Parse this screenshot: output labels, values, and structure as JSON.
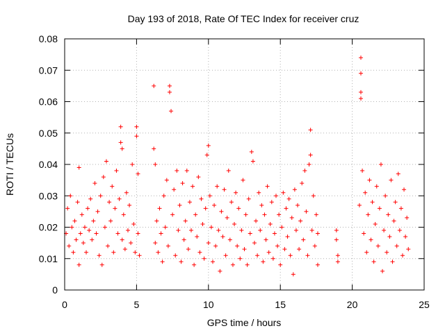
{
  "chart_data": {
    "type": "scatter",
    "title": "Day 193 of 2018, Rate Of TEC Index for receiver cruz",
    "xlabel": "GPS time / hours",
    "ylabel": "ROTI / TECUs",
    "xlim": [
      0,
      25
    ],
    "ylim": [
      0,
      0.08
    ],
    "x_ticks": [
      0,
      5,
      10,
      15,
      20,
      25
    ],
    "x_tick_labels": [
      "0",
      "5",
      "10",
      "15",
      "20",
      "25"
    ],
    "y_ticks": [
      0,
      0.01,
      0.02,
      0.03,
      0.04,
      0.05,
      0.06,
      0.07,
      0.08
    ],
    "y_tick_labels": [
      "0",
      "0.01",
      "0.02",
      "0.03",
      "0.04",
      "0.05",
      "0.06",
      "0.07",
      "0.08"
    ],
    "grid": true,
    "marker": "+",
    "color": "#ff0000",
    "series": [
      {
        "name": "ROTI",
        "points": [
          [
            0.1,
            0.018
          ],
          [
            0.2,
            0.026
          ],
          [
            0.3,
            0.014
          ],
          [
            0.4,
            0.03
          ],
          [
            0.5,
            0.02
          ],
          [
            0.6,
            0.012
          ],
          [
            0.7,
            0.022
          ],
          [
            0.8,
            0.016
          ],
          [
            0.9,
            0.028
          ],
          [
            1.0,
            0.039
          ],
          [
            1.0,
            0.008
          ],
          [
            1.1,
            0.018
          ],
          [
            1.2,
            0.024
          ],
          [
            1.3,
            0.015
          ],
          [
            1.4,
            0.02
          ],
          [
            1.5,
            0.012
          ],
          [
            1.6,
            0.026
          ],
          [
            1.7,
            0.019
          ],
          [
            1.8,
            0.029
          ],
          [
            1.9,
            0.016
          ],
          [
            2.0,
            0.022
          ],
          [
            2.1,
            0.034
          ],
          [
            2.2,
            0.018
          ],
          [
            2.3,
            0.025
          ],
          [
            2.4,
            0.011
          ],
          [
            2.5,
            0.03
          ],
          [
            2.6,
            0.008
          ],
          [
            2.7,
            0.036
          ],
          [
            2.8,
            0.02
          ],
          [
            2.9,
            0.041
          ],
          [
            3.0,
            0.014
          ],
          [
            3.1,
            0.028
          ],
          [
            3.2,
            0.022
          ],
          [
            3.3,
            0.033
          ],
          [
            3.4,
            0.012
          ],
          [
            3.5,
            0.026
          ],
          [
            3.6,
            0.038
          ],
          [
            3.7,
            0.018
          ],
          [
            3.8,
            0.029
          ],
          [
            3.9,
            0.052
          ],
          [
            3.9,
            0.047
          ],
          [
            4.0,
            0.045
          ],
          [
            4.0,
            0.016
          ],
          [
            4.1,
            0.024
          ],
          [
            4.2,
            0.013
          ],
          [
            4.3,
            0.031
          ],
          [
            4.4,
            0.019
          ],
          [
            4.5,
            0.027
          ],
          [
            4.6,
            0.015
          ],
          [
            4.7,
            0.04
          ],
          [
            4.8,
            0.021
          ],
          [
            4.9,
            0.012
          ],
          [
            5.0,
            0.052
          ],
          [
            5.0,
            0.049
          ],
          [
            5.1,
            0.037
          ],
          [
            5.1,
            0.018
          ],
          [
            5.2,
            0.011
          ],
          [
            6.2,
            0.065
          ],
          [
            6.2,
            0.045
          ],
          [
            6.3,
            0.04
          ],
          [
            6.3,
            0.015
          ],
          [
            6.4,
            0.022
          ],
          [
            6.5,
            0.012
          ],
          [
            6.6,
            0.026
          ],
          [
            6.7,
            0.018
          ],
          [
            6.8,
            0.009
          ],
          [
            6.9,
            0.03
          ],
          [
            7.0,
            0.02
          ],
          [
            7.1,
            0.035
          ],
          [
            7.2,
            0.014
          ],
          [
            7.3,
            0.065
          ],
          [
            7.3,
            0.063
          ],
          [
            7.4,
            0.057
          ],
          [
            7.5,
            0.024
          ],
          [
            7.6,
            0.032
          ],
          [
            7.7,
            0.011
          ],
          [
            7.8,
            0.038
          ],
          [
            7.9,
            0.019
          ],
          [
            8.0,
            0.027
          ],
          [
            8.1,
            0.009
          ],
          [
            8.2,
            0.034
          ],
          [
            8.3,
            0.016
          ],
          [
            8.4,
            0.022
          ],
          [
            8.5,
            0.038
          ],
          [
            8.6,
            0.013
          ],
          [
            8.7,
            0.028
          ],
          [
            8.8,
            0.019
          ],
          [
            8.9,
            0.033
          ],
          [
            9.0,
            0.008
          ],
          [
            9.1,
            0.024
          ],
          [
            9.2,
            0.017
          ],
          [
            9.3,
            0.036
          ],
          [
            9.4,
            0.012
          ],
          [
            9.5,
            0.029
          ],
          [
            9.6,
            0.021
          ],
          [
            9.7,
            0.01
          ],
          [
            9.8,
            0.026
          ],
          [
            9.9,
            0.043
          ],
          [
            10.0,
            0.046
          ],
          [
            10.0,
            0.015
          ],
          [
            10.1,
            0.03
          ],
          [
            10.2,
            0.02
          ],
          [
            10.3,
            0.009
          ],
          [
            10.4,
            0.027
          ],
          [
            10.5,
            0.014
          ],
          [
            10.6,
            0.033
          ],
          [
            10.7,
            0.019
          ],
          [
            10.8,
            0.006
          ],
          [
            10.9,
            0.025
          ],
          [
            11.0,
            0.017
          ],
          [
            11.1,
            0.032
          ],
          [
            11.2,
            0.011
          ],
          [
            11.3,
            0.023
          ],
          [
            11.4,
            0.038
          ],
          [
            11.5,
            0.016
          ],
          [
            11.6,
            0.028
          ],
          [
            11.7,
            0.008
          ],
          [
            11.8,
            0.021
          ],
          [
            11.9,
            0.031
          ],
          [
            12.0,
            0.014
          ],
          [
            12.1,
            0.026
          ],
          [
            12.2,
            0.01
          ],
          [
            12.3,
            0.019
          ],
          [
            12.4,
            0.035
          ],
          [
            12.5,
            0.013
          ],
          [
            12.6,
            0.024
          ],
          [
            12.7,
            0.008
          ],
          [
            12.8,
            0.029
          ],
          [
            12.9,
            0.018
          ],
          [
            13.0,
            0.044
          ],
          [
            13.1,
            0.041
          ],
          [
            13.2,
            0.015
          ],
          [
            13.3,
            0.022
          ],
          [
            13.4,
            0.011
          ],
          [
            13.5,
            0.031
          ],
          [
            13.6,
            0.019
          ],
          [
            13.7,
            0.027
          ],
          [
            13.8,
            0.009
          ],
          [
            13.9,
            0.024
          ],
          [
            14.0,
            0.016
          ],
          [
            14.1,
            0.033
          ],
          [
            14.2,
            0.012
          ],
          [
            14.3,
            0.021
          ],
          [
            14.4,
            0.028
          ],
          [
            14.5,
            0.01
          ],
          [
            14.6,
            0.018
          ],
          [
            14.7,
            0.03
          ],
          [
            14.8,
            0.014
          ],
          [
            14.9,
            0.024
          ],
          [
            15.0,
            0.008
          ],
          [
            15.1,
            0.02
          ],
          [
            15.2,
            0.031
          ],
          [
            15.3,
            0.013
          ],
          [
            15.4,
            0.026
          ],
          [
            15.5,
            0.017
          ],
          [
            15.6,
            0.029
          ],
          [
            15.7,
            0.011
          ],
          [
            15.8,
            0.023
          ],
          [
            15.9,
            0.005
          ],
          [
            16.0,
            0.032
          ],
          [
            16.1,
            0.019
          ],
          [
            16.2,
            0.027
          ],
          [
            16.3,
            0.013
          ],
          [
            16.4,
            0.022
          ],
          [
            16.5,
            0.034
          ],
          [
            16.6,
            0.016
          ],
          [
            16.7,
            0.038
          ],
          [
            16.8,
            0.025
          ],
          [
            16.9,
            0.011
          ],
          [
            17.0,
            0.04
          ],
          [
            17.1,
            0.043
          ],
          [
            17.1,
            0.051
          ],
          [
            17.2,
            0.019
          ],
          [
            17.3,
            0.03
          ],
          [
            17.4,
            0.014
          ],
          [
            17.5,
            0.024
          ],
          [
            17.6,
            0.008
          ],
          [
            17.6,
            0.018
          ],
          [
            18.9,
            0.019
          ],
          [
            18.9,
            0.016
          ],
          [
            19.0,
            0.011
          ],
          [
            19.0,
            0.009
          ],
          [
            20.5,
            0.027
          ],
          [
            20.6,
            0.074
          ],
          [
            20.6,
            0.069
          ],
          [
            20.6,
            0.063
          ],
          [
            20.6,
            0.061
          ],
          [
            20.7,
            0.038
          ],
          [
            20.8,
            0.018
          ],
          [
            20.9,
            0.031
          ],
          [
            21.0,
            0.012
          ],
          [
            21.1,
            0.024
          ],
          [
            21.2,
            0.035
          ],
          [
            21.3,
            0.016
          ],
          [
            21.4,
            0.028
          ],
          [
            21.5,
            0.009
          ],
          [
            21.6,
            0.021
          ],
          [
            21.7,
            0.033
          ],
          [
            21.8,
            0.014
          ],
          [
            21.9,
            0.026
          ],
          [
            22.0,
            0.04
          ],
          [
            22.1,
            0.006
          ],
          [
            22.2,
            0.019
          ],
          [
            22.3,
            0.03
          ],
          [
            22.4,
            0.012
          ],
          [
            22.5,
            0.024
          ],
          [
            22.6,
            0.017
          ],
          [
            22.7,
            0.035
          ],
          [
            22.8,
            0.009
          ],
          [
            22.9,
            0.022
          ],
          [
            23.0,
            0.028
          ],
          [
            23.1,
            0.014
          ],
          [
            23.2,
            0.037
          ],
          [
            23.3,
            0.019
          ],
          [
            23.4,
            0.026
          ],
          [
            23.5,
            0.011
          ],
          [
            23.6,
            0.032
          ],
          [
            23.7,
            0.017
          ],
          [
            23.8,
            0.023
          ],
          [
            23.9,
            0.013
          ]
        ]
      }
    ]
  }
}
